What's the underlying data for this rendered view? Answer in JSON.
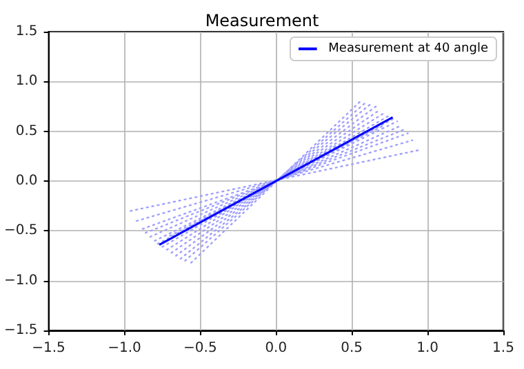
{
  "chart_data": {
    "type": "line",
    "title": "Measurement",
    "legend": "top right",
    "grid": true,
    "marker": "none",
    "xlim": [
      -1.5,
      1.5
    ],
    "ylim": [
      -1.5,
      1.5
    ],
    "xticks": [
      {
        "value": -1.5,
        "label": "−1.5"
      },
      {
        "value": -1.0,
        "label": "−1.0"
      },
      {
        "value": -0.5,
        "label": "−0.5"
      },
      {
        "value": 0,
        "label": "0.0"
      },
      {
        "value": 0.5,
        "label": "0.5"
      },
      {
        "value": 1.0,
        "label": "1.0"
      },
      {
        "value": 1.5,
        "label": "1.5"
      }
    ],
    "yticks": [
      {
        "value": -1.5,
        "label": "−1.5"
      },
      {
        "value": -1.0,
        "label": "−1.0"
      },
      {
        "value": -0.5,
        "label": "−0.5"
      },
      {
        "value": 0,
        "label": "0.0"
      },
      {
        "value": 0.5,
        "label": "0.5"
      },
      {
        "value": 1.0,
        "label": "1.0"
      },
      {
        "value": 1.5,
        "label": "1.5"
      }
    ],
    "series": [
      {
        "color": "#a0a0ff",
        "line_style": "dotted",
        "x": [
          -0.96,
          0.94
        ],
        "values": [
          -0.3,
          0.31
        ]
      },
      {
        "color": "#a0a0ff",
        "line_style": "dotted",
        "x": [
          -0.92,
          0.9
        ],
        "values": [
          -0.4,
          0.41
        ]
      },
      {
        "color": "#a0a0ff",
        "line_style": "dotted",
        "x": [
          -0.88,
          0.87
        ],
        "values": [
          -0.48,
          0.48
        ]
      },
      {
        "color": "#a0a0ff",
        "line_style": "dotted",
        "x": [
          -0.86,
          0.85
        ],
        "values": [
          -0.52,
          0.52
        ]
      },
      {
        "color": "#a0a0ff",
        "line_style": "dotted",
        "x": [
          -0.83,
          0.83
        ],
        "values": [
          -0.56,
          0.56
        ]
      },
      {
        "color": "#a0a0ff",
        "line_style": "dotted",
        "x": [
          -0.8,
          0.8
        ],
        "values": [
          -0.6,
          0.6
        ]
      },
      {
        "color": "#a0a0ff",
        "line_style": "dotted",
        "x": [
          -0.78,
          0.78
        ],
        "values": [
          -0.63,
          0.63
        ]
      },
      {
        "color": "#a0a0ff",
        "line_style": "dotted",
        "x": [
          -0.75,
          0.75
        ],
        "values": [
          -0.66,
          0.66
        ]
      },
      {
        "color": "#a0a0ff",
        "line_style": "dotted",
        "x": [
          -0.72,
          0.72
        ],
        "values": [
          -0.69,
          0.69
        ]
      },
      {
        "color": "#a0a0ff",
        "line_style": "dotted",
        "x": [
          -0.69,
          0.69
        ],
        "values": [
          -0.72,
          0.72
        ]
      },
      {
        "color": "#a0a0ff",
        "line_style": "dotted",
        "x": [
          -0.66,
          0.66
        ],
        "values": [
          -0.75,
          0.75
        ]
      },
      {
        "color": "#a0a0ff",
        "line_style": "dotted",
        "x": [
          -0.63,
          0.63
        ],
        "values": [
          -0.78,
          0.78
        ]
      },
      {
        "color": "#a0a0ff",
        "line_style": "dotted",
        "x": [
          -0.6,
          0.6
        ],
        "values": [
          -0.8,
          0.8
        ]
      },
      {
        "color": "#a0a0ff",
        "line_style": "dotted",
        "x": [
          -0.56,
          0.57
        ],
        "values": [
          -0.82,
          0.82
        ]
      },
      {
        "color": "#a0a0ff",
        "line_style": "dotted",
        "x": [
          -0.7,
          0.7
        ],
        "values": [
          -0.55,
          0.55
        ]
      },
      {
        "color": "#a0a0ff",
        "line_style": "dotted",
        "x": [
          -0.4,
          0.4
        ],
        "values": [
          -0.36,
          0.36
        ]
      },
      {
        "name": "Measurement at 40 angle",
        "color": "#0000ff",
        "line_style": "solid",
        "x": [
          -0.77,
          0.77
        ],
        "values": [
          -0.64,
          0.64
        ]
      }
    ]
  }
}
